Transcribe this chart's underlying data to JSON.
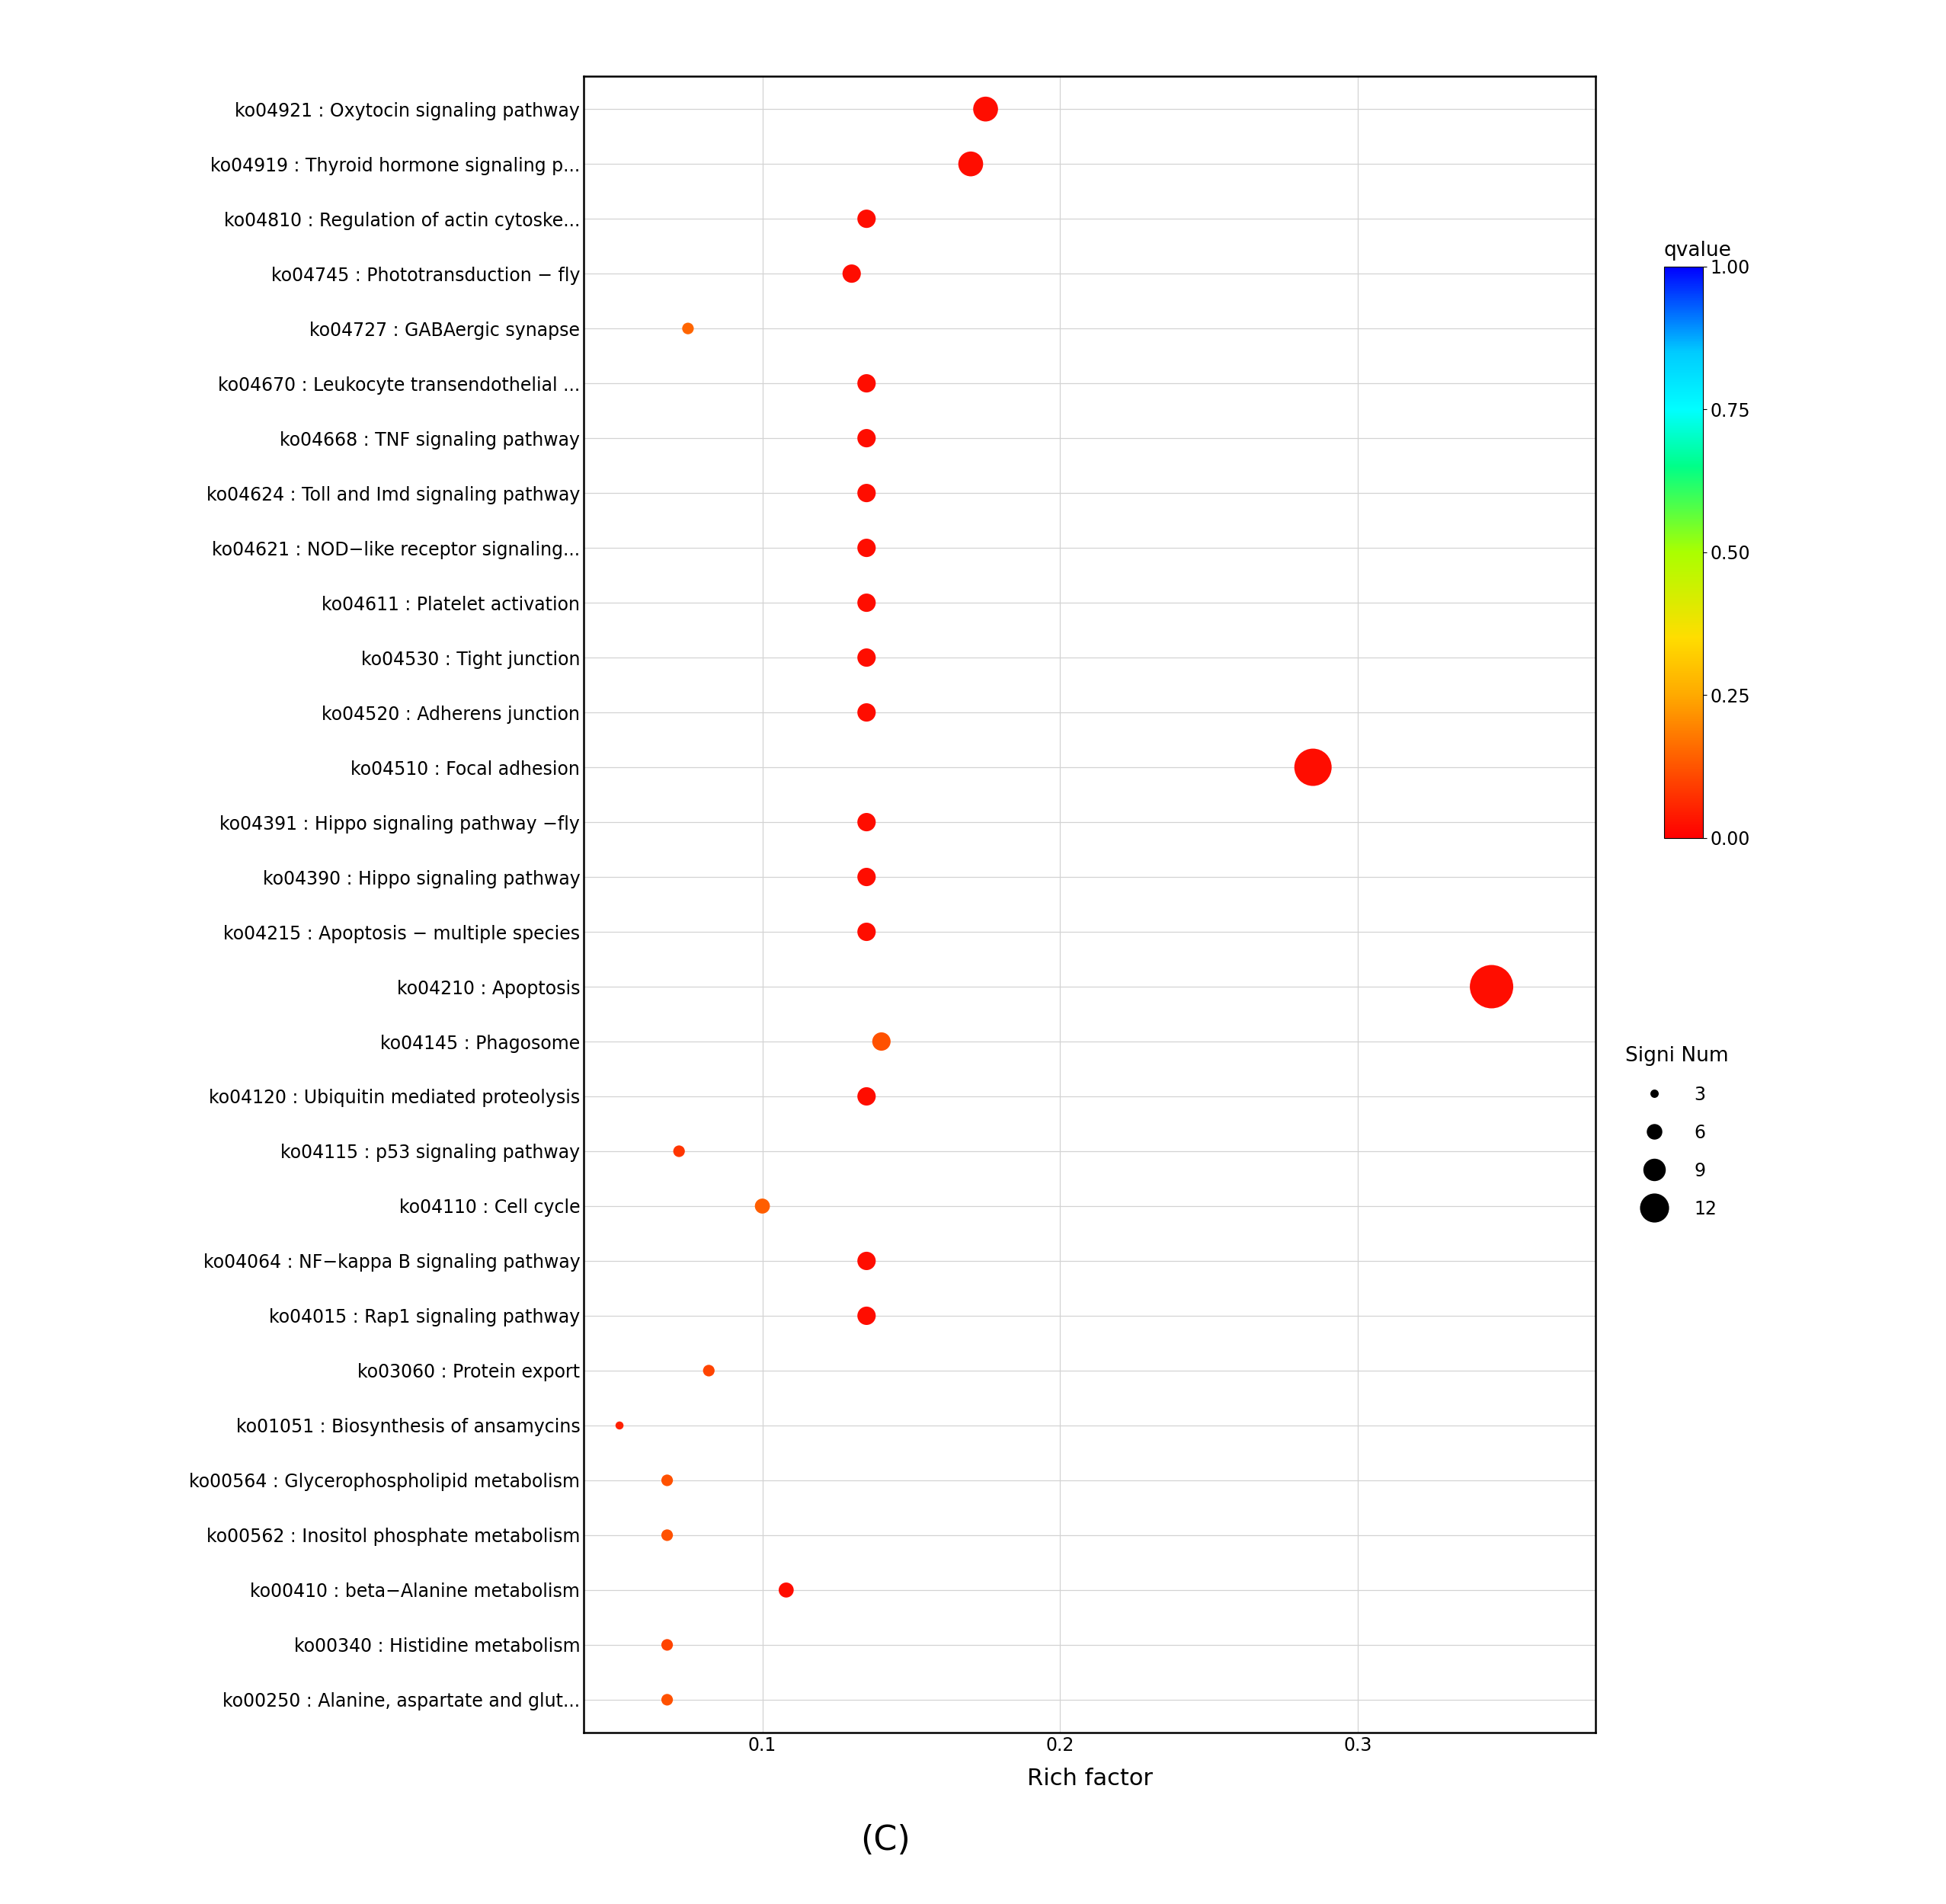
{
  "pathways": [
    "ko04921 : Oxytocin signaling pathway",
    "ko04919 : Thyroid hormone signaling p...",
    "ko04810 : Regulation of actin cytoske...",
    "ko04745 : Phototransduction − fly",
    "ko04727 : GABAergic synapse",
    "ko04670 : Leukocyte transendothelial ...",
    "ko04668 : TNF signaling pathway",
    "ko04624 : Toll and Imd signaling pathway",
    "ko04621 : NOD−like receptor signaling...",
    "ko04611 : Platelet activation",
    "ko04530 : Tight junction",
    "ko04520 : Adherens junction",
    "ko04510 : Focal adhesion",
    "ko04391 : Hippo signaling pathway −fly",
    "ko04390 : Hippo signaling pathway",
    "ko04215 : Apoptosis − multiple species",
    "ko04210 : Apoptosis",
    "ko04145 : Phagosome",
    "ko04120 : Ubiquitin mediated proteolysis",
    "ko04115 : p53 signaling pathway",
    "ko04110 : Cell cycle",
    "ko04064 : NF−kappa B signaling pathway",
    "ko04015 : Rap1 signaling pathway",
    "ko03060 : Protein export",
    "ko01051 : Biosynthesis of ansamycins",
    "ko00564 : Glycerophospholipid metabolism",
    "ko00562 : Inositol phosphate metabolism",
    "ko00410 : beta−Alanine metabolism",
    "ko00340 : Histidine metabolism",
    "ko00250 : Alanine, aspartate and glut..."
  ],
  "rich_factor": [
    0.175,
    0.17,
    0.135,
    0.13,
    0.075,
    0.135,
    0.135,
    0.135,
    0.135,
    0.135,
    0.135,
    0.135,
    0.285,
    0.135,
    0.135,
    0.135,
    0.345,
    0.14,
    0.135,
    0.072,
    0.1,
    0.135,
    0.135,
    0.082,
    0.052,
    0.068,
    0.068,
    0.108,
    0.068,
    0.068
  ],
  "qvalue": [
    0.02,
    0.02,
    0.02,
    0.02,
    0.15,
    0.02,
    0.02,
    0.02,
    0.02,
    0.02,
    0.02,
    0.02,
    0.02,
    0.02,
    0.02,
    0.02,
    0.02,
    0.12,
    0.02,
    0.08,
    0.14,
    0.02,
    0.02,
    0.1,
    0.05,
    0.12,
    0.12,
    0.02,
    0.1,
    0.12
  ],
  "signi_num": [
    7,
    7,
    5,
    5,
    3,
    5,
    5,
    5,
    5,
    5,
    5,
    5,
    11,
    5,
    5,
    5,
    13,
    5,
    5,
    3,
    4,
    5,
    5,
    3,
    2,
    3,
    3,
    4,
    3,
    3
  ],
  "xlabel": "Rich factor",
  "subtitle": "(C)",
  "colorbar_label": "qvalue",
  "size_legend_label": "Signi Num",
  "size_legend_values": [
    3,
    6,
    9,
    12
  ],
  "xlim": [
    0.04,
    0.38
  ],
  "xticks": [
    0.1,
    0.2,
    0.3
  ],
  "background_color": "#ffffff",
  "grid_color": "#d3d3d3",
  "colorbar_colors": [
    "#FF0000",
    "#FF4400",
    "#FF8800",
    "#FFCC00",
    "#FFFF00",
    "#CCFF00",
    "#00FF00",
    "#00FFCC",
    "#00CCFF",
    "#0088FF",
    "#0000FF"
  ],
  "size_scale": 120
}
